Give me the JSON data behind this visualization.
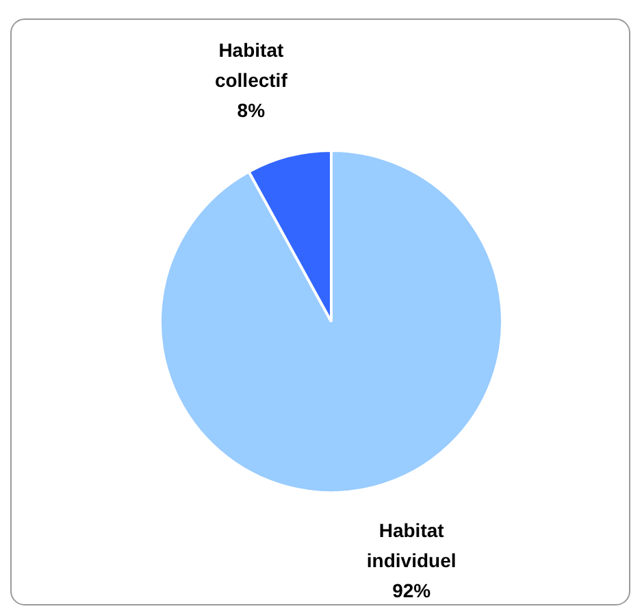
{
  "chart_data": {
    "type": "pie",
    "categories": [
      "Habitat individuel",
      "Habitat collectif"
    ],
    "values": [
      92,
      8
    ],
    "colors": [
      "#99ccff",
      "#3366ff"
    ],
    "value_labels": [
      "92%",
      "8%"
    ]
  }
}
